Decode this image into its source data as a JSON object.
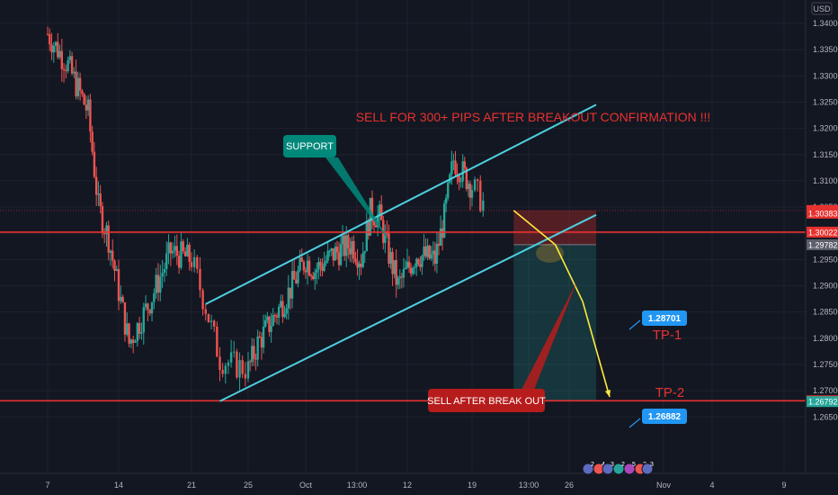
{
  "chart_data": {
    "type": "candlestick",
    "title": "",
    "currency_label": "USD",
    "x_ticks": [
      "7",
      "14",
      "21",
      "25",
      "Oct",
      "13:00",
      "12",
      "19",
      "13:00",
      "26",
      "Nov",
      "4",
      "9"
    ],
    "y_ticks": [
      1.34,
      1.335,
      1.33,
      1.325,
      1.32,
      1.315,
      1.31,
      1.305,
      1.3,
      1.295,
      1.29,
      1.285,
      1.28,
      1.275,
      1.27,
      1.265
    ],
    "ylim": [
      1.2635,
      1.3455
    ],
    "candles_from": 1.338,
    "price_badges": [
      {
        "label": "1.30435",
        "value": 1.30435,
        "color": "#e8322f"
      },
      {
        "label": "1.30383",
        "value": 1.30383,
        "color": "#e8322f"
      },
      {
        "label": "1.30022",
        "value": 1.30022,
        "color": "#e8322f"
      },
      {
        "label": "1.29782",
        "value": 1.29782,
        "color": "#5d606b"
      },
      {
        "label": "1.26808",
        "value": 1.26808,
        "color": "#e8322f"
      },
      {
        "label": "1.26792",
        "value": 1.26792,
        "color": "#26a69a"
      }
    ],
    "horizontal_levels": [
      1.30022,
      1.26808
    ],
    "channel": {
      "upper": [
        {
          "x": "2020-09-22",
          "y": 1.2865
        },
        {
          "x": "2020-10-28",
          "y": 1.3245
        }
      ],
      "lower": [
        {
          "x": "2020-09-23",
          "y": 1.268
        },
        {
          "x": "2020-10-28",
          "y": 1.3035
        }
      ],
      "color": "#4dd0e1"
    },
    "trade_zone": {
      "entry": 1.29782,
      "stop": 1.30435,
      "target": 1.26808,
      "stop_color": "#e8322f",
      "target_color": "#26a69a"
    },
    "projection_path": [
      {
        "x": "2020-10-22",
        "y": 1.30435
      },
      {
        "x": "2020-10-25",
        "y": 1.29782
      },
      {
        "x": "2020-10-27",
        "y": 1.28701
      },
      {
        "x": "2020-10-29",
        "y": 1.26882
      }
    ],
    "annotations": [
      {
        "id": "headline",
        "text": "SELL FOR 300+ PIPS AFTER BREAKOUT CONFIRMATION !!!",
        "color": "#e8322f"
      },
      {
        "id": "support",
        "text": "SUPPORT",
        "color": "#00897b"
      },
      {
        "id": "sell_after",
        "text": "SELL AFTER BREAK OUT",
        "color": "#b71c1c"
      },
      {
        "id": "tp1",
        "text": "TP-1",
        "color": "#e8322f"
      },
      {
        "id": "tp2",
        "text": "TP-2",
        "color": "#e8322f"
      },
      {
        "id": "tp1_price",
        "text": "1.28701",
        "color": "#2196f3"
      },
      {
        "id": "tp2_price",
        "text": "1.26882",
        "color": "#2196f3"
      }
    ],
    "event_markers": [
      "2",
      "4",
      "3",
      "2",
      "5",
      "2",
      "3"
    ],
    "colors": {
      "background": "#131722",
      "up": "#26a69a",
      "down": "#ef5350",
      "grid": "#1e222d",
      "axis_text": "#b2b5be"
    }
  }
}
